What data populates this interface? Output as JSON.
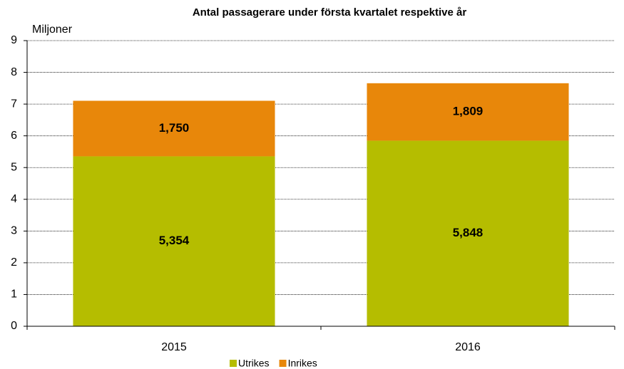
{
  "chart_data": {
    "type": "stacked_bar",
    "title": "Antal passagerare under första kvartalet respektive år",
    "y_label": "Miljoner",
    "categories": [
      "2015",
      "2016"
    ],
    "series": [
      {
        "name": "Utrikes",
        "color": "#b5bd00",
        "values": [
          5.354,
          5.848
        ],
        "value_labels": [
          "5,354",
          "5,848"
        ]
      },
      {
        "name": "Inrikes",
        "color": "#e8870a",
        "values": [
          1.75,
          1.809
        ],
        "value_labels": [
          "1,750",
          "1,809"
        ]
      }
    ],
    "ylim": [
      0,
      9
    ],
    "yticks": [
      0,
      1,
      2,
      3,
      4,
      5,
      6,
      7,
      8,
      9
    ],
    "grid": true,
    "legend": "bottom"
  }
}
